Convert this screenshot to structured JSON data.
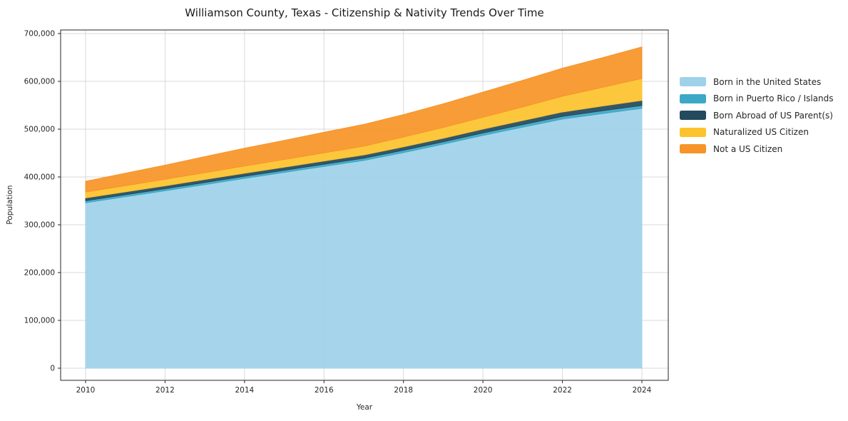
{
  "figure": {
    "title": "Williamson County, Texas - Citizenship & Nativity Trends Over Time",
    "xlabel": "Year",
    "ylabel": "Population"
  },
  "chart_data": {
    "type": "area",
    "stacked": true,
    "title": "Williamson County, Texas - Citizenship & Nativity Trends Over Time",
    "xlabel": "Year",
    "ylabel": "Population",
    "x": [
      2010,
      2011,
      2012,
      2013,
      2014,
      2015,
      2016,
      2017,
      2018,
      2019,
      2020,
      2021,
      2022,
      2023,
      2024
    ],
    "series": [
      {
        "name": "Born in the United States",
        "color": "#9fd2e9",
        "values": [
          346000,
          358500,
          371000,
          384000,
          397000,
          409500,
          422000,
          434500,
          451000,
          468500,
          487000,
          504000,
          521000,
          532500,
          543500
        ]
      },
      {
        "name": "Born in Puerto Rico / Islands",
        "color": "#3da8c5",
        "values": [
          4300,
          4300,
          4400,
          4400,
          4500,
          4500,
          4600,
          4700,
          4900,
          5000,
          5200,
          5500,
          5700,
          5900,
          6100
        ]
      },
      {
        "name": "Born Abroad of US Parent(s)",
        "color": "#234a5e",
        "values": [
          6000,
          6100,
          6200,
          6300,
          6400,
          6500,
          6700,
          6900,
          7100,
          7500,
          7900,
          8500,
          9200,
          9900,
          10600
        ]
      },
      {
        "name": "Naturalized US Citizen",
        "color": "#fdc32e",
        "values": [
          12200,
          12900,
          13600,
          14300,
          15100,
          16000,
          17100,
          18300,
          20500,
          22500,
          24800,
          28500,
          33000,
          39000,
          45800
        ]
      },
      {
        "name": "Not a US Citizen",
        "color": "#f79428",
        "values": [
          22500,
          26000,
          29500,
          33500,
          37000,
          40000,
          43000,
          45500,
          47000,
          49500,
          52500,
          55500,
          58500,
          62000,
          66000
        ]
      }
    ],
    "ylim": [
      0,
      700000
    ],
    "yticks": [
      0,
      100000,
      200000,
      300000,
      400000,
      500000,
      600000,
      700000
    ],
    "xticks": [
      2010,
      2012,
      2014,
      2016,
      2018,
      2020,
      2022,
      2024
    ],
    "grid": true,
    "legend_position": "outside-right"
  },
  "style": {
    "grid_color": "#d9d9d9",
    "spine_color": "#262626",
    "tick_color": "#262626",
    "area_opacity": 0.93
  }
}
